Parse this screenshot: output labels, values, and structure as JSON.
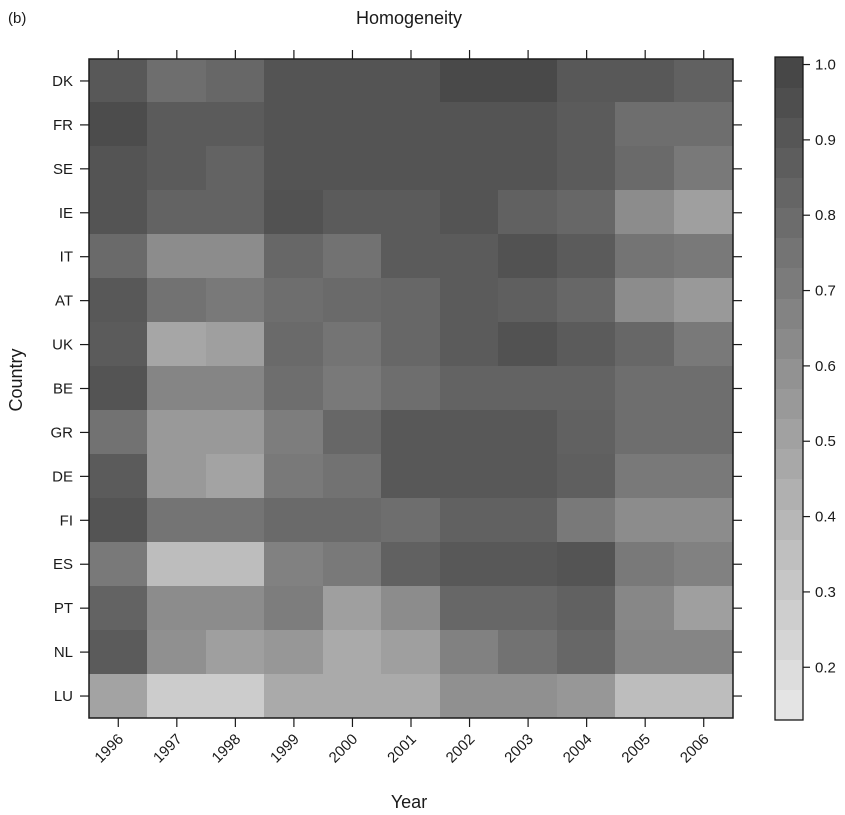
{
  "panel_label": "(b)",
  "chart_data": {
    "type": "heatmap",
    "title": "Homogeneity",
    "xlabel": "Year",
    "ylabel": "Country",
    "x": [
      "1996",
      "1997",
      "1998",
      "1999",
      "2000",
      "2001",
      "2002",
      "2003",
      "2004",
      "2005",
      "2006"
    ],
    "y": [
      "DK",
      "FR",
      "SE",
      "IE",
      "IT",
      "AT",
      "UK",
      "BE",
      "GR",
      "DE",
      "FI",
      "ES",
      "PT",
      "NL",
      "LU"
    ],
    "values": [
      [
        0.9,
        0.78,
        0.82,
        0.92,
        0.92,
        0.92,
        0.98,
        0.98,
        0.9,
        0.9,
        0.85
      ],
      [
        0.96,
        0.88,
        0.88,
        0.92,
        0.92,
        0.92,
        0.92,
        0.92,
        0.88,
        0.78,
        0.78
      ],
      [
        0.92,
        0.88,
        0.84,
        0.92,
        0.92,
        0.92,
        0.92,
        0.92,
        0.88,
        0.8,
        0.72
      ],
      [
        0.92,
        0.84,
        0.84,
        0.93,
        0.88,
        0.88,
        0.92,
        0.85,
        0.82,
        0.62,
        0.52
      ],
      [
        0.8,
        0.62,
        0.62,
        0.82,
        0.76,
        0.88,
        0.88,
        0.93,
        0.88,
        0.75,
        0.72
      ],
      [
        0.9,
        0.76,
        0.72,
        0.78,
        0.8,
        0.82,
        0.88,
        0.86,
        0.82,
        0.62,
        0.55
      ],
      [
        0.88,
        0.48,
        0.52,
        0.8,
        0.75,
        0.82,
        0.88,
        0.93,
        0.88,
        0.82,
        0.72
      ],
      [
        0.92,
        0.66,
        0.66,
        0.78,
        0.72,
        0.78,
        0.84,
        0.84,
        0.84,
        0.78,
        0.78
      ],
      [
        0.76,
        0.55,
        0.55,
        0.7,
        0.82,
        0.9,
        0.9,
        0.9,
        0.85,
        0.78,
        0.78
      ],
      [
        0.88,
        0.55,
        0.5,
        0.72,
        0.76,
        0.9,
        0.9,
        0.9,
        0.86,
        0.72,
        0.72
      ],
      [
        0.92,
        0.75,
        0.75,
        0.8,
        0.8,
        0.78,
        0.85,
        0.85,
        0.72,
        0.62,
        0.62
      ],
      [
        0.72,
        0.36,
        0.36,
        0.68,
        0.72,
        0.85,
        0.9,
        0.9,
        0.92,
        0.72,
        0.68
      ],
      [
        0.84,
        0.62,
        0.62,
        0.7,
        0.52,
        0.62,
        0.82,
        0.82,
        0.85,
        0.65,
        0.52
      ],
      [
        0.88,
        0.6,
        0.52,
        0.56,
        0.46,
        0.52,
        0.68,
        0.76,
        0.82,
        0.66,
        0.66
      ],
      [
        0.5,
        0.28,
        0.28,
        0.46,
        0.46,
        0.46,
        0.6,
        0.6,
        0.56,
        0.36,
        0.36
      ]
    ],
    "colorbar": {
      "min": 0.13,
      "max": 1.01,
      "ticks": [
        "0.2",
        "0.3",
        "0.4",
        "0.5",
        "0.6",
        "0.7",
        "0.8",
        "0.9",
        "1.0"
      ],
      "tick_values": [
        0.2,
        0.3,
        0.4,
        0.5,
        0.6,
        0.7,
        0.8,
        0.9,
        1.0
      ],
      "light_color": "#e8e8e8",
      "dark_color": "#434343"
    },
    "grid": false,
    "legend": "right"
  }
}
